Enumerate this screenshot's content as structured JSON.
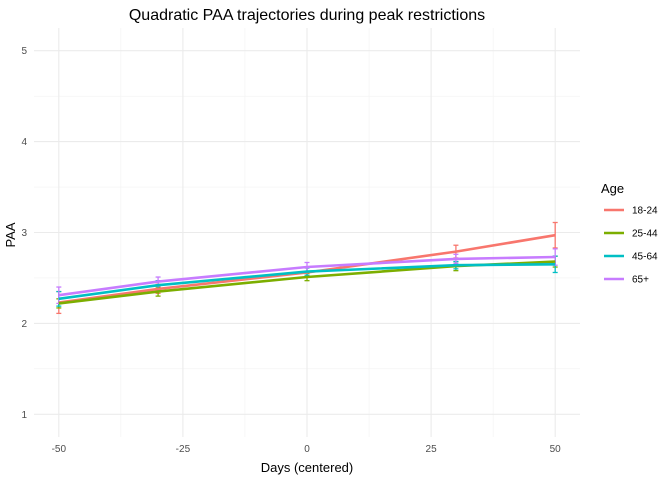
{
  "chart_data": {
    "type": "line",
    "title": "Quadratic PAA trajectories during peak restrictions",
    "xlabel": "Days  (centered)",
    "ylabel": "PAA",
    "xlim": [
      -55,
      55
    ],
    "ylim": [
      0.75,
      5.25
    ],
    "x_ticks": [
      -50,
      -25,
      0,
      25,
      50
    ],
    "x_tick_labels": [
      "-50",
      "-25",
      "0",
      "25",
      "50"
    ],
    "x_minor_ticks": [
      -37.5,
      -12.5,
      12.5,
      37.5
    ],
    "y_ticks": [
      1,
      2,
      3,
      4,
      5
    ],
    "y_tick_labels": [
      "1",
      "2",
      "3",
      "4",
      "5"
    ],
    "y_minor_ticks": [
      1.5,
      2.5,
      3.5,
      4.5
    ],
    "grid": true,
    "legend": {
      "title": "Age",
      "position": "right"
    },
    "x": [
      -50,
      -30,
      0,
      30,
      50
    ],
    "series": [
      {
        "name": "18-24",
        "color": "#F8766D",
        "values": [
          2.23,
          2.38,
          2.56,
          2.79,
          2.97
        ],
        "lower": [
          2.11,
          2.33,
          2.51,
          2.72,
          2.83
        ],
        "upper": [
          2.35,
          2.43,
          2.61,
          2.86,
          3.11
        ]
      },
      {
        "name": "25-44",
        "color": "#7CAE00",
        "values": [
          2.22,
          2.35,
          2.51,
          2.63,
          2.68
        ],
        "lower": [
          2.17,
          2.3,
          2.47,
          2.58,
          2.62
        ],
        "upper": [
          2.27,
          2.4,
          2.55,
          2.68,
          2.74
        ]
      },
      {
        "name": "45-64",
        "color": "#00BFC4",
        "values": [
          2.27,
          2.42,
          2.57,
          2.64,
          2.65
        ],
        "lower": [
          2.19,
          2.37,
          2.53,
          2.6,
          2.56
        ],
        "upper": [
          2.35,
          2.47,
          2.61,
          2.68,
          2.74
        ]
      },
      {
        "name": "65+",
        "color": "#C77CFF",
        "values": [
          2.31,
          2.46,
          2.62,
          2.71,
          2.73
        ],
        "lower": [
          2.22,
          2.41,
          2.57,
          2.66,
          2.64
        ],
        "upper": [
          2.4,
          2.51,
          2.67,
          2.76,
          2.82
        ]
      }
    ]
  }
}
